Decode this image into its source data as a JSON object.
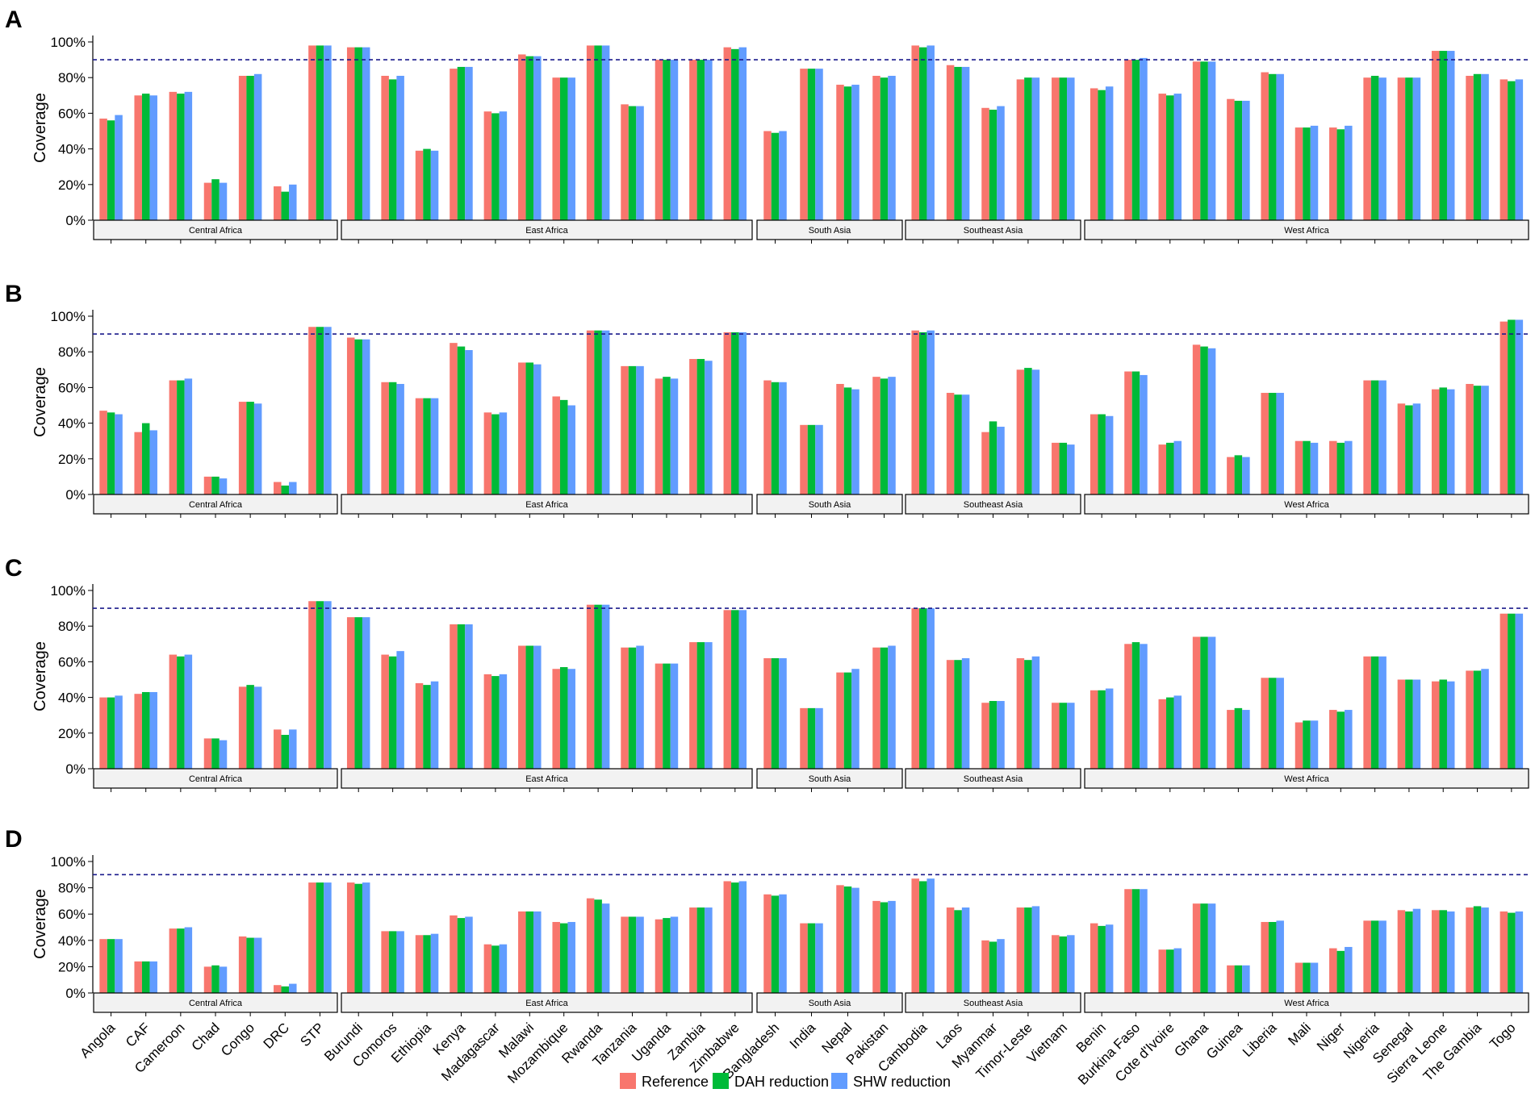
{
  "chart_data": {
    "type": "bar",
    "ylabel": "Coverage",
    "ylim": [
      0,
      100
    ],
    "yticks": [
      "0%",
      "20%",
      "40%",
      "60%",
      "80%",
      "100%"
    ],
    "target_line": 90,
    "colors": {
      "Reference": "#F8766D",
      "DAH reduction": "#00BA38",
      "SHW reduction": "#619CFF"
    },
    "legend": [
      "Reference",
      "DAH reduction",
      "SHW reduction"
    ],
    "legend_position": "bottom",
    "regions": [
      {
        "name": "Central Africa",
        "countries": [
          "Angola",
          "CAF",
          "Cameroon",
          "Chad",
          "Congo",
          "DRC",
          "STP"
        ]
      },
      {
        "name": "East Africa",
        "countries": [
          "Burundi",
          "Comoros",
          "Ethiopia",
          "Kenya",
          "Madagascar",
          "Malawi",
          "Mozambique",
          "Rwanda",
          "Tanzania",
          "Uganda",
          "Zambia",
          "Zimbabwe"
        ]
      },
      {
        "name": "South Asia",
        "countries": [
          "Bangladesh",
          "India",
          "Nepal",
          "Pakistan"
        ]
      },
      {
        "name": "Southeast Asia",
        "countries": [
          "Cambodia",
          "Laos",
          "Myanmar",
          "Timor-Leste",
          "Vietnam"
        ]
      },
      {
        "name": "West Africa",
        "countries": [
          "Benin",
          "Burkina Faso",
          "Cote d'Ivoire",
          "Ghana",
          "Guinea",
          "Liberia",
          "Mali",
          "Niger",
          "Nigeria",
          "Senegal",
          "Sierra Leone",
          "The Gambia",
          "Togo"
        ]
      }
    ],
    "panels": [
      {
        "label": "A",
        "values": [
          [
            57,
            56,
            59
          ],
          [
            70,
            71,
            70
          ],
          [
            72,
            71,
            72
          ],
          [
            21,
            23,
            21
          ],
          [
            81,
            81,
            82
          ],
          [
            19,
            16,
            20
          ],
          [
            98,
            98,
            98
          ],
          [
            97,
            97,
            97
          ],
          [
            81,
            79,
            81
          ],
          [
            39,
            40,
            39
          ],
          [
            85,
            86,
            86
          ],
          [
            61,
            60,
            61
          ],
          [
            93,
            92,
            92
          ],
          [
            80,
            80,
            80
          ],
          [
            98,
            98,
            98
          ],
          [
            65,
            64,
            64
          ],
          [
            90,
            90,
            90
          ],
          [
            90,
            90,
            90
          ],
          [
            97,
            96,
            97
          ],
          [
            50,
            49,
            50
          ],
          [
            85,
            85,
            85
          ],
          [
            76,
            75,
            76
          ],
          [
            81,
            80,
            81
          ],
          [
            98,
            97,
            98
          ],
          [
            87,
            86,
            86
          ],
          [
            63,
            62,
            64
          ],
          [
            79,
            80,
            80
          ],
          [
            80,
            80,
            80
          ],
          [
            74,
            73,
            75
          ],
          [
            90,
            90,
            91
          ],
          [
            71,
            70,
            71
          ],
          [
            89,
            89,
            89
          ],
          [
            68,
            67,
            67
          ],
          [
            83,
            82,
            82
          ],
          [
            52,
            52,
            53
          ],
          [
            52,
            51,
            53
          ],
          [
            80,
            81,
            80
          ],
          [
            80,
            80,
            80
          ],
          [
            95,
            95,
            95
          ],
          [
            81,
            82,
            82
          ],
          [
            79,
            78,
            79
          ]
        ]
      },
      {
        "label": "B",
        "values": [
          [
            47,
            46,
            45
          ],
          [
            35,
            40,
            36
          ],
          [
            64,
            64,
            65
          ],
          [
            10,
            10,
            9
          ],
          [
            52,
            52,
            51
          ],
          [
            7,
            5,
            7
          ],
          [
            94,
            94,
            94
          ],
          [
            88,
            87,
            87
          ],
          [
            63,
            63,
            62
          ],
          [
            54,
            54,
            54
          ],
          [
            85,
            83,
            81
          ],
          [
            46,
            45,
            46
          ],
          [
            74,
            74,
            73
          ],
          [
            55,
            53,
            50
          ],
          [
            92,
            92,
            92
          ],
          [
            72,
            72,
            72
          ],
          [
            65,
            66,
            65
          ],
          [
            76,
            76,
            75
          ],
          [
            91,
            91,
            91
          ],
          [
            64,
            63,
            63
          ],
          [
            39,
            39,
            39
          ],
          [
            62,
            60,
            59
          ],
          [
            66,
            65,
            66
          ],
          [
            92,
            91,
            92
          ],
          [
            57,
            56,
            56
          ],
          [
            35,
            41,
            38
          ],
          [
            70,
            71,
            70
          ],
          [
            29,
            29,
            28
          ],
          [
            45,
            45,
            44
          ],
          [
            69,
            69,
            67
          ],
          [
            28,
            29,
            30
          ],
          [
            84,
            83,
            82
          ],
          [
            21,
            22,
            21
          ],
          [
            57,
            57,
            57
          ],
          [
            30,
            30,
            29
          ],
          [
            30,
            29,
            30
          ],
          [
            64,
            64,
            64
          ],
          [
            51,
            50,
            51
          ],
          [
            59,
            60,
            59
          ],
          [
            62,
            61,
            61
          ],
          [
            97,
            98,
            98
          ]
        ]
      },
      {
        "label": "C",
        "values": [
          [
            40,
            40,
            41
          ],
          [
            42,
            43,
            43
          ],
          [
            64,
            63,
            64
          ],
          [
            17,
            17,
            16
          ],
          [
            46,
            47,
            46
          ],
          [
            22,
            19,
            22
          ],
          [
            94,
            94,
            94
          ],
          [
            85,
            85,
            85
          ],
          [
            64,
            63,
            66
          ],
          [
            48,
            47,
            49
          ],
          [
            81,
            81,
            81
          ],
          [
            53,
            52,
            53
          ],
          [
            69,
            69,
            69
          ],
          [
            56,
            57,
            56
          ],
          [
            92,
            92,
            92
          ],
          [
            68,
            68,
            69
          ],
          [
            59,
            59,
            59
          ],
          [
            71,
            71,
            71
          ],
          [
            89,
            89,
            89
          ],
          [
            62,
            62,
            62
          ],
          [
            34,
            34,
            34
          ],
          [
            54,
            54,
            56
          ],
          [
            68,
            68,
            69
          ],
          [
            90,
            90,
            90
          ],
          [
            61,
            61,
            62
          ],
          [
            37,
            38,
            38
          ],
          [
            62,
            61,
            63
          ],
          [
            37,
            37,
            37
          ],
          [
            44,
            44,
            45
          ],
          [
            70,
            71,
            70
          ],
          [
            39,
            40,
            41
          ],
          [
            74,
            74,
            74
          ],
          [
            33,
            34,
            33
          ],
          [
            51,
            51,
            51
          ],
          [
            26,
            27,
            27
          ],
          [
            33,
            32,
            33
          ],
          [
            63,
            63,
            63
          ],
          [
            50,
            50,
            50
          ],
          [
            49,
            50,
            49
          ],
          [
            55,
            55,
            56
          ],
          [
            87,
            87,
            87
          ]
        ]
      },
      {
        "label": "D",
        "values": [
          [
            41,
            41,
            41
          ],
          [
            24,
            24,
            24
          ],
          [
            49,
            49,
            50
          ],
          [
            20,
            21,
            20
          ],
          [
            43,
            42,
            42
          ],
          [
            6,
            5,
            7
          ],
          [
            84,
            84,
            84
          ],
          [
            84,
            83,
            84
          ],
          [
            47,
            47,
            47
          ],
          [
            44,
            44,
            45
          ],
          [
            59,
            57,
            58
          ],
          [
            37,
            36,
            37
          ],
          [
            62,
            62,
            62
          ],
          [
            54,
            53,
            54
          ],
          [
            72,
            71,
            68
          ],
          [
            58,
            58,
            58
          ],
          [
            56,
            57,
            58
          ],
          [
            65,
            65,
            65
          ],
          [
            85,
            84,
            85
          ],
          [
            75,
            74,
            75
          ],
          [
            53,
            53,
            53
          ],
          [
            82,
            81,
            80
          ],
          [
            70,
            69,
            70
          ],
          [
            87,
            85,
            87
          ],
          [
            65,
            63,
            65
          ],
          [
            40,
            39,
            41
          ],
          [
            65,
            65,
            66
          ],
          [
            44,
            43,
            44
          ],
          [
            53,
            51,
            52
          ],
          [
            79,
            79,
            79
          ],
          [
            33,
            33,
            34
          ],
          [
            68,
            68,
            68
          ],
          [
            21,
            21,
            21
          ],
          [
            54,
            54,
            55
          ],
          [
            23,
            23,
            23
          ],
          [
            34,
            32,
            35
          ],
          [
            55,
            55,
            55
          ],
          [
            63,
            62,
            64
          ],
          [
            63,
            63,
            62
          ],
          [
            65,
            66,
            65
          ],
          [
            62,
            61,
            62
          ]
        ]
      }
    ]
  }
}
